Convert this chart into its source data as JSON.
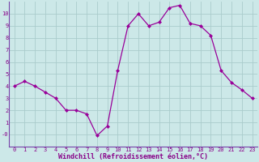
{
  "x": [
    0,
    1,
    2,
    3,
    4,
    5,
    6,
    7,
    8,
    9,
    10,
    11,
    12,
    13,
    14,
    15,
    16,
    17,
    18,
    19,
    20,
    21,
    22,
    23
  ],
  "y": [
    4.0,
    4.4,
    4.0,
    3.5,
    3.0,
    2.0,
    2.0,
    1.7,
    -0.1,
    0.7,
    5.3,
    9.0,
    10.0,
    9.0,
    9.3,
    10.5,
    10.7,
    9.2,
    9.0,
    8.2,
    5.3,
    4.3,
    3.7,
    3.0
  ],
  "line_color": "#990099",
  "marker": "D",
  "marker_size": 2.0,
  "bg_color": "#cce8e8",
  "grid_color": "#aacccc",
  "spine_color": "#7744aa",
  "xlabel": "Windchill (Refroidissement éolien,°C)",
  "xlabel_color": "#880088",
  "tick_color": "#880088",
  "xlim": [
    -0.5,
    23.5
  ],
  "ylim": [
    -1.0,
    11.0
  ],
  "yticks": [
    0,
    1,
    2,
    3,
    4,
    5,
    6,
    7,
    8,
    9,
    10
  ],
  "ytick_labels": [
    "-0",
    "1",
    "2",
    "3",
    "4",
    "5",
    "6",
    "7",
    "8",
    "9",
    "10"
  ],
  "xticks": [
    0,
    1,
    2,
    3,
    4,
    5,
    6,
    7,
    8,
    9,
    10,
    11,
    12,
    13,
    14,
    15,
    16,
    17,
    18,
    19,
    20,
    21,
    22,
    23
  ],
  "xtick_labels": [
    "0",
    "1",
    "2",
    "3",
    "4",
    "5",
    "6",
    "7",
    "8",
    "9",
    "10",
    "11",
    "12",
    "13",
    "14",
    "15",
    "16",
    "17",
    "18",
    "19",
    "20",
    "21",
    "22",
    "23"
  ],
  "tick_fontsize": 5.0,
  "xlabel_fontsize": 6.0,
  "linewidth": 0.9
}
